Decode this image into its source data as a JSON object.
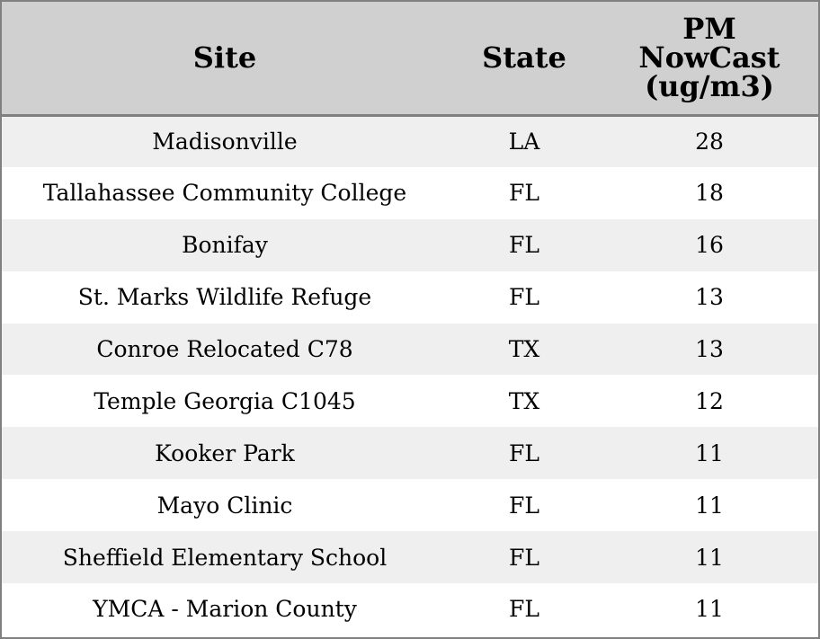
{
  "chart_data": {
    "type": "table",
    "columns": [
      "Site",
      "State",
      "PM NowCast (ug/m3)"
    ],
    "header_lines": {
      "site": [
        "Site"
      ],
      "state": [
        "State"
      ],
      "pm": [
        "PM",
        "NowCast",
        "(ug/m3)"
      ]
    },
    "rows": [
      {
        "site": "Madisonville",
        "state": "LA",
        "pm": "28"
      },
      {
        "site": "Tallahassee Community College",
        "state": "FL",
        "pm": "18"
      },
      {
        "site": "Bonifay",
        "state": "FL",
        "pm": "16"
      },
      {
        "site": "St. Marks Wildlife Refuge",
        "state": "FL",
        "pm": "13"
      },
      {
        "site": "Conroe Relocated C78",
        "state": "TX",
        "pm": "13"
      },
      {
        "site": "Temple Georgia C1045",
        "state": "TX",
        "pm": "12"
      },
      {
        "site": "Kooker Park",
        "state": "FL",
        "pm": "11"
      },
      {
        "site": "Mayo Clinic",
        "state": "FL",
        "pm": "11"
      },
      {
        "site": "Sheffield Elementary School",
        "state": "FL",
        "pm": "11"
      },
      {
        "site": "YMCA - Marion County",
        "state": "FL",
        "pm": "11"
      }
    ]
  },
  "colors": {
    "header_background": "#d0d0d0",
    "odd_row_background": "#efefef",
    "even_row_background": "#ffffff",
    "border": "#808080",
    "text": "#000000"
  }
}
